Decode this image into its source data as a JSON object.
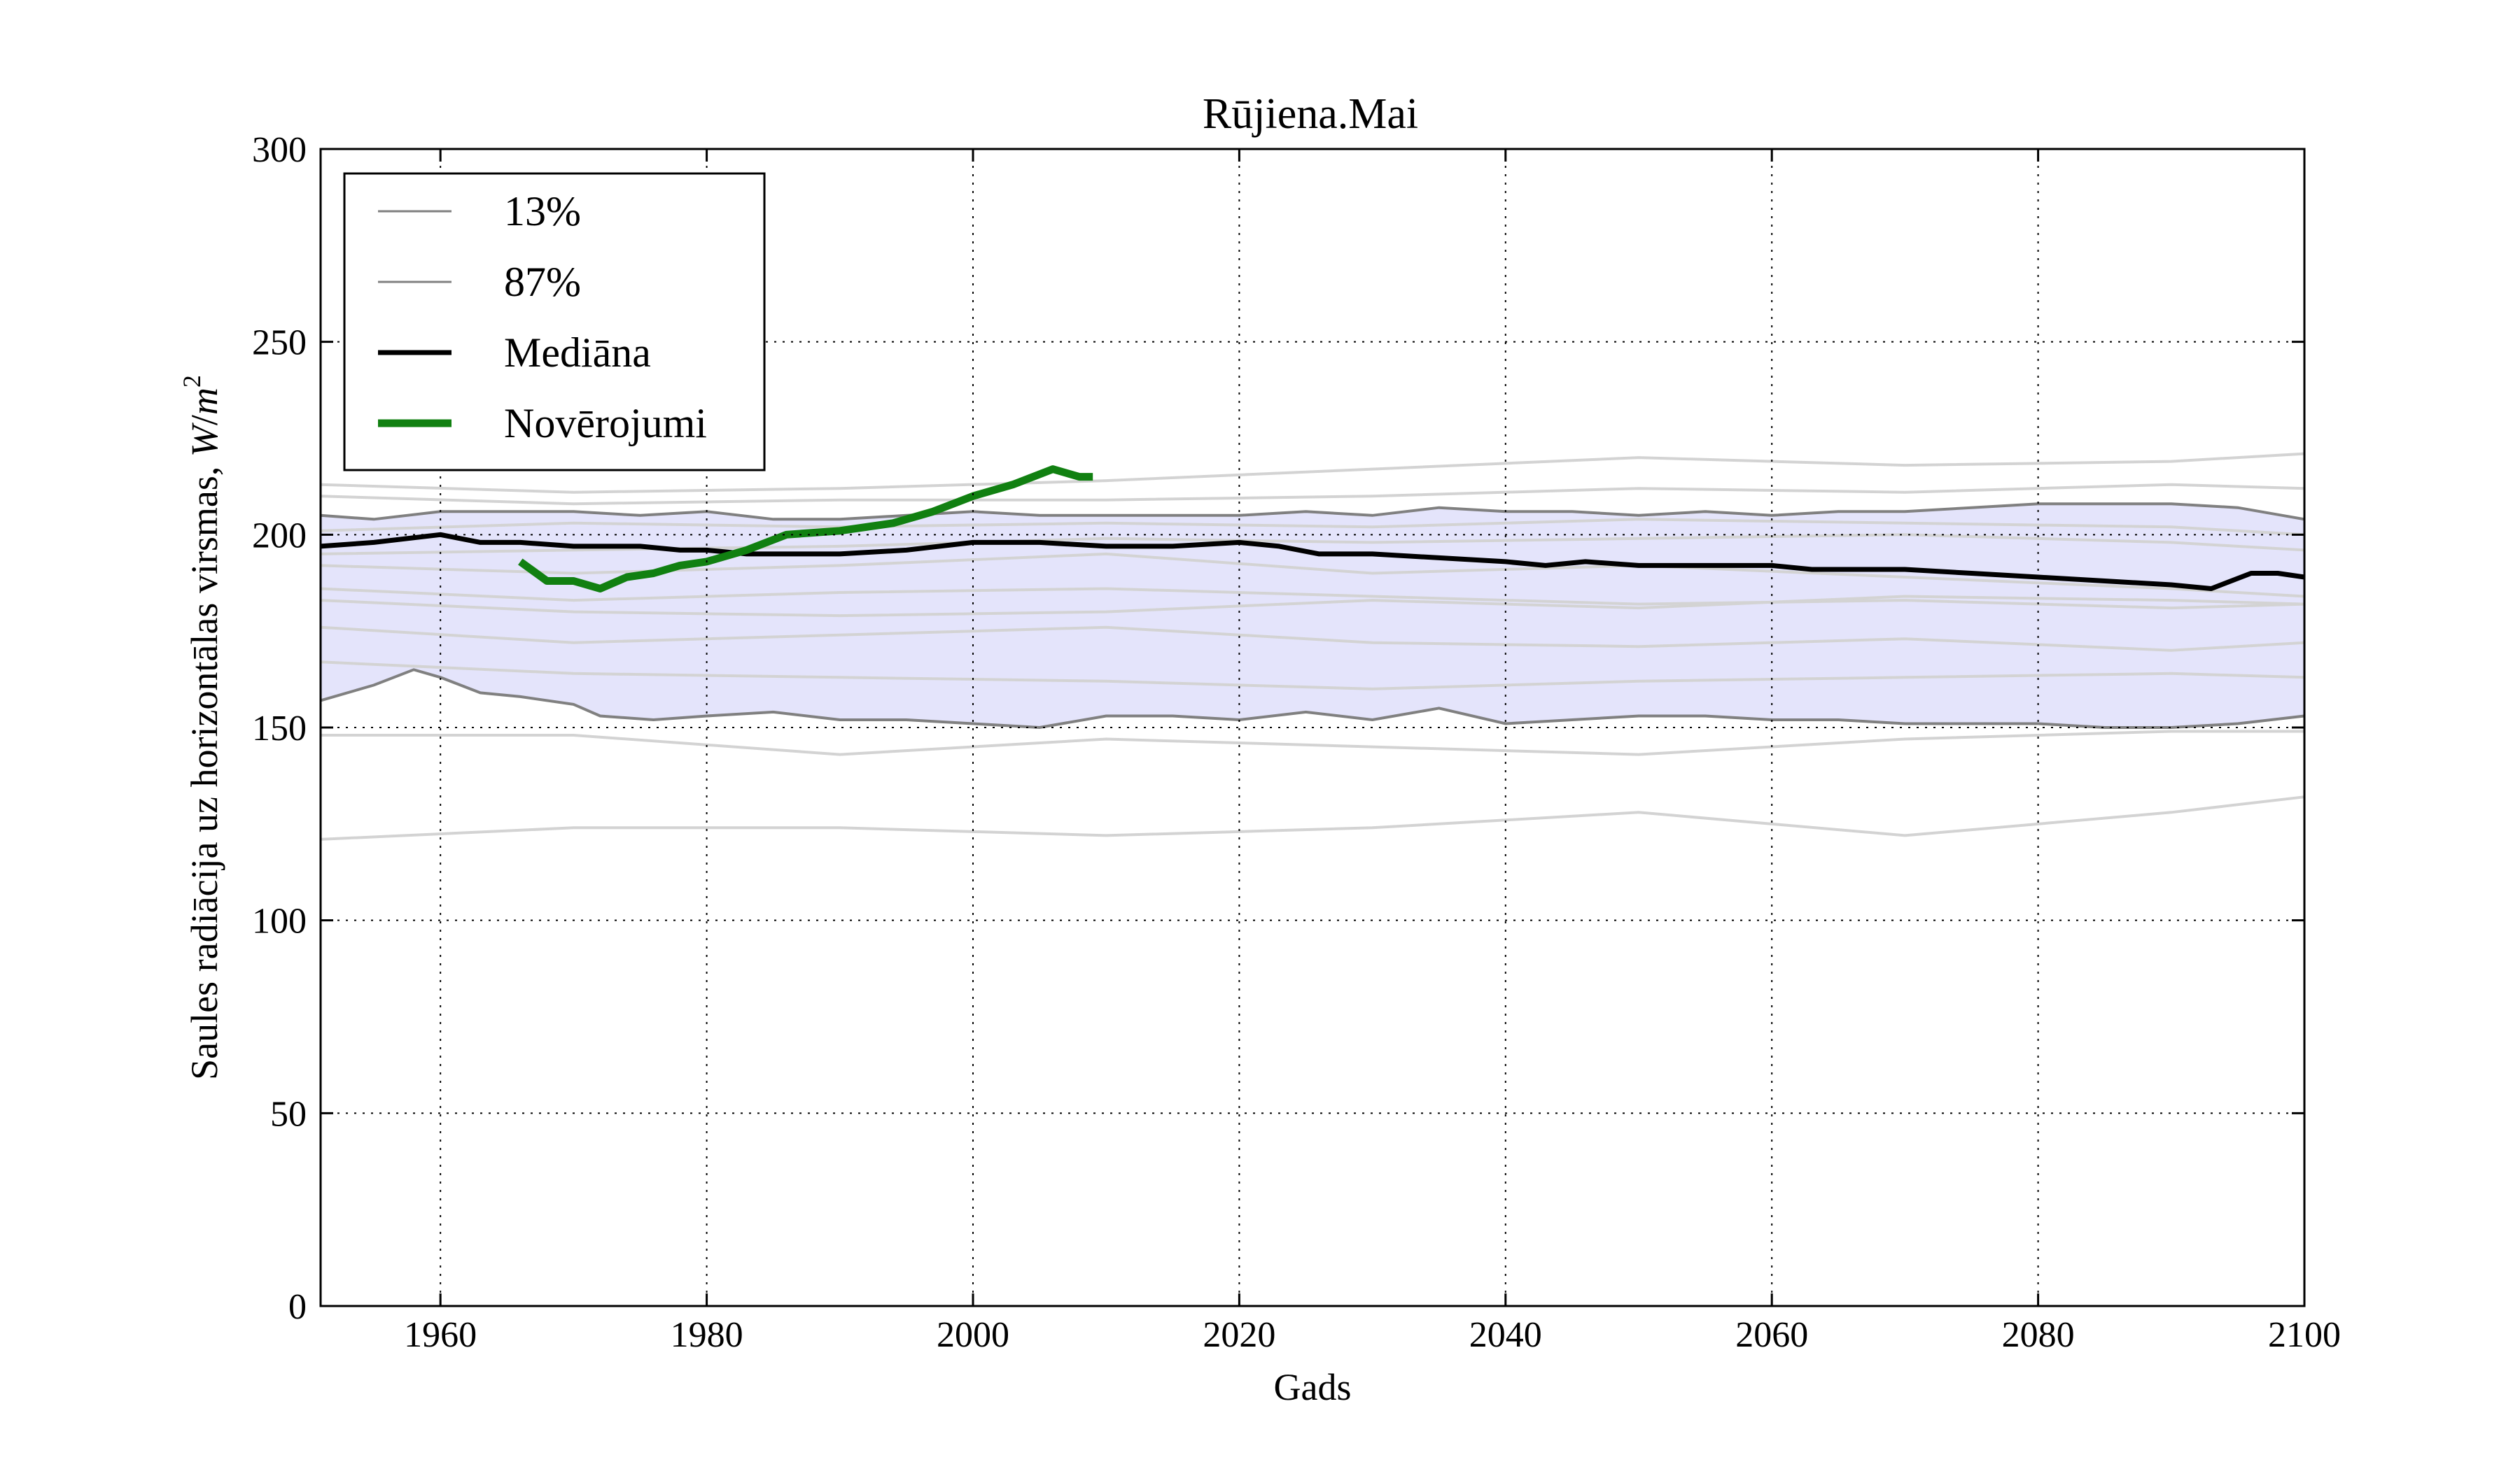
{
  "chart_data": {
    "type": "line",
    "title": "Rūjiena.Mai",
    "xlabel": "Gads",
    "ylabel": "Saules radiācija uz horizontālas virsmas,",
    "ylabel_unit_var": "W",
    "ylabel_unit_sep": "/",
    "ylabel_unit_base": "m",
    "ylabel_unit_exp": "2",
    "xlim": [
      1951,
      2100
    ],
    "ylim": [
      0,
      300
    ],
    "x_ticks": [
      1960,
      1980,
      2000,
      2020,
      2040,
      2060,
      2080,
      2100
    ],
    "y_ticks": [
      0,
      50,
      100,
      150,
      200,
      250,
      300
    ],
    "grid": true,
    "legend_position": "upper-left",
    "colors": {
      "band_fill": "#e4e4fb",
      "ensemble": "#d3d3d3",
      "percentile": "#808080",
      "median": "#000000",
      "observations": "#118011"
    },
    "legend": [
      {
        "label": "13%",
        "style": "percentile"
      },
      {
        "label": "87%",
        "style": "percentile"
      },
      {
        "label": "Mediāna",
        "style": "median"
      },
      {
        "label": "Novērojumi",
        "style": "observations"
      }
    ],
    "percentile_13": {
      "x": [
        1951,
        1955,
        1958,
        1960,
        1963,
        1966,
        1970,
        1972,
        1976,
        1980,
        1985,
        1990,
        1995,
        2000,
        2005,
        2010,
        2015,
        2020,
        2025,
        2030,
        2035,
        2040,
        2045,
        2050,
        2055,
        2060,
        2065,
        2070,
        2075,
        2080,
        2085,
        2090,
        2095,
        2100
      ],
      "y": [
        157,
        161,
        165,
        163,
        159,
        158,
        156,
        153,
        152,
        153,
        154,
        152,
        152,
        151,
        150,
        153,
        153,
        152,
        154,
        152,
        155,
        151,
        152,
        153,
        153,
        152,
        152,
        151,
        151,
        151,
        150,
        150,
        151,
        153
      ]
    },
    "percentile_87": {
      "x": [
        1951,
        1955,
        1960,
        1965,
        1970,
        1975,
        1980,
        1985,
        1990,
        1995,
        2000,
        2005,
        2010,
        2015,
        2020,
        2025,
        2030,
        2035,
        2040,
        2045,
        2050,
        2055,
        2060,
        2065,
        2070,
        2075,
        2080,
        2085,
        2090,
        2095,
        2100
      ],
      "y": [
        205,
        204,
        206,
        206,
        206,
        205,
        206,
        204,
        204,
        205,
        206,
        205,
        205,
        205,
        205,
        206,
        205,
        207,
        206,
        206,
        205,
        206,
        205,
        206,
        206,
        207,
        208,
        208,
        208,
        207,
        204
      ]
    },
    "median": {
      "x": [
        1951,
        1955,
        1960,
        1963,
        1966,
        1970,
        1975,
        1978,
        1980,
        1983,
        1986,
        1990,
        1995,
        2000,
        2005,
        2010,
        2015,
        2020,
        2023,
        2026,
        2030,
        2035,
        2040,
        2043,
        2046,
        2050,
        2055,
        2060,
        2063,
        2066,
        2070,
        2075,
        2080,
        2085,
        2090,
        2093,
        2096,
        2098,
        2100
      ],
      "y": [
        197,
        198,
        200,
        198,
        198,
        197,
        197,
        196,
        196,
        195,
        195,
        195,
        196,
        198,
        198,
        197,
        197,
        198,
        197,
        195,
        195,
        194,
        193,
        192,
        193,
        192,
        192,
        192,
        191,
        191,
        191,
        190,
        189,
        188,
        187,
        186,
        190,
        190,
        189
      ]
    },
    "observations": {
      "x": [
        1966,
        1968,
        1970,
        1972,
        1974,
        1976,
        1978,
        1980,
        1983,
        1986,
        1990,
        1994,
        1997,
        2000,
        2003,
        2006,
        2007,
        2008,
        2009
      ],
      "y": [
        193,
        188,
        188,
        186,
        189,
        190,
        192,
        193,
        196,
        200,
        201,
        203,
        206,
        210,
        213,
        217,
        216,
        215,
        215
      ]
    },
    "ensemble_members": [
      {
        "x": [
          1951,
          1970,
          1990,
          2010,
          2030,
          2050,
          2070,
          2090,
          2100
        ],
        "y": [
          213,
          211,
          212,
          214,
          217,
          220,
          218,
          219,
          221
        ]
      },
      {
        "x": [
          1951,
          1970,
          1990,
          2010,
          2030,
          2050,
          2070,
          2090,
          2100
        ],
        "y": [
          210,
          208,
          209,
          209,
          210,
          212,
          211,
          213,
          212
        ]
      },
      {
        "x": [
          1951,
          1970,
          1990,
          2010,
          2030,
          2050,
          2070,
          2090,
          2100
        ],
        "y": [
          201,
          203,
          202,
          203,
          202,
          204,
          203,
          202,
          200
        ]
      },
      {
        "x": [
          1951,
          1970,
          1990,
          2010,
          2030,
          2050,
          2070,
          2090,
          2100
        ],
        "y": [
          195,
          196,
          197,
          199,
          198,
          199,
          200,
          198,
          196
        ]
      },
      {
        "x": [
          1951,
          1970,
          1990,
          2010,
          2030,
          2050,
          2070,
          2090,
          2100
        ],
        "y": [
          192,
          190,
          192,
          195,
          190,
          192,
          189,
          186,
          184
        ]
      },
      {
        "x": [
          1951,
          1970,
          1990,
          2010,
          2030,
          2050,
          2070,
          2090,
          2100
        ],
        "y": [
          186,
          183,
          185,
          186,
          184,
          182,
          183,
          181,
          182
        ]
      },
      {
        "x": [
          1951,
          1970,
          1990,
          2010,
          2030,
          2050,
          2070,
          2090,
          2100
        ],
        "y": [
          183,
          180,
          179,
          180,
          183,
          181,
          184,
          183,
          182
        ]
      },
      {
        "x": [
          1951,
          1970,
          1990,
          2010,
          2030,
          2050,
          2070,
          2090,
          2100
        ],
        "y": [
          176,
          172,
          174,
          176,
          172,
          171,
          173,
          170,
          172
        ]
      },
      {
        "x": [
          1951,
          1970,
          1990,
          2010,
          2030,
          2050,
          2070,
          2090,
          2100
        ],
        "y": [
          167,
          164,
          163,
          162,
          160,
          162,
          163,
          164,
          163
        ]
      },
      {
        "x": [
          1951,
          1970,
          1990,
          2010,
          2030,
          2050,
          2070,
          2090,
          2100
        ],
        "y": [
          148,
          148,
          143,
          147,
          145,
          143,
          147,
          149,
          149
        ]
      },
      {
        "x": [
          1951,
          1970,
          1990,
          2010,
          2030,
          2050,
          2070,
          2090,
          2100
        ],
        "y": [
          121,
          124,
          124,
          122,
          124,
          128,
          122,
          128,
          132
        ]
      }
    ]
  }
}
